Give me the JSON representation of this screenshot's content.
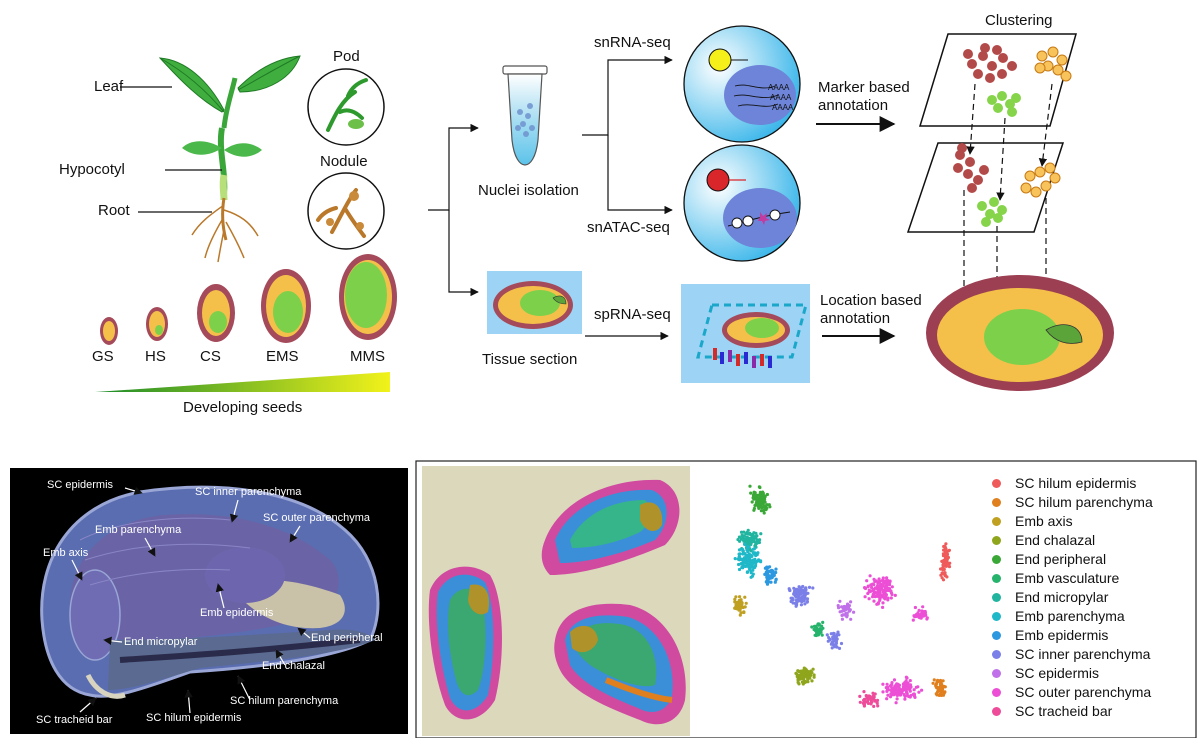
{
  "workflow": {
    "plant_labels": {
      "leaf": "Leaf",
      "hypocotyl": "Hypocotyl",
      "root": "Root",
      "pod": "Pod",
      "nodule": "Nodule"
    },
    "seed_stages": [
      "GS",
      "HS",
      "CS",
      "EMS",
      "MMS"
    ],
    "developing_seeds": "Developing seeds",
    "nuclei_isolation": "Nuclei isolation",
    "tissue_section": "Tissue section",
    "snrna_seq": "snRNA-seq",
    "snatac_seq": "snATAC-seq",
    "sprna_seq": "spRNA-seq",
    "marker_annotation": [
      "Marker based",
      "annotation"
    ],
    "location_annotation": [
      "Location based",
      "annotation"
    ],
    "clustering": "Clustering"
  },
  "micrograph": {
    "labels": {
      "sc_epidermis": "SC epidermis",
      "sc_inner_parenchyma": "SC inner parenchyma",
      "sc_outer_parenchyma": "SC outer parenchyma",
      "emb_parenchyma": "Emb parenchyma",
      "emb_axis": "Emb axis",
      "emb_epidermis": "Emb epidermis",
      "end_peripheral": "End peripheral",
      "end_micropylar": "End micropylar",
      "end_chalazal": "End chalazal",
      "sc_hilum_parenchyma": "SC hilum parenchyma",
      "sc_tracheid_bar": "SC tracheid bar",
      "sc_hilum_epidermis": "SC hilum epidermis"
    }
  },
  "legend": [
    {
      "label": "SC hilum epidermis",
      "color": "#ef5a5a"
    },
    {
      "label": "SC hilum parenchyma",
      "color": "#e07f1e"
    },
    {
      "label": "Emb axis",
      "color": "#c0a020"
    },
    {
      "label": "End chalazal",
      "color": "#8fa51c"
    },
    {
      "label": "End peripheral",
      "color": "#3aa837"
    },
    {
      "label": "Emb vasculature",
      "color": "#26b36b"
    },
    {
      "label": "End micropylar",
      "color": "#21b5a0"
    },
    {
      "label": "Emb parenchyma",
      "color": "#1fb8c9"
    },
    {
      "label": "Emb epidermis",
      "color": "#2c98e0"
    },
    {
      "label": "SC inner parenchyma",
      "color": "#7b7fe8"
    },
    {
      "label": "SC epidermis",
      "color": "#c070e8"
    },
    {
      "label": "SC outer parenchyma",
      "color": "#ec4fd5"
    },
    {
      "label": "SC tracheid bar",
      "color": "#ee4b9a"
    }
  ]
}
